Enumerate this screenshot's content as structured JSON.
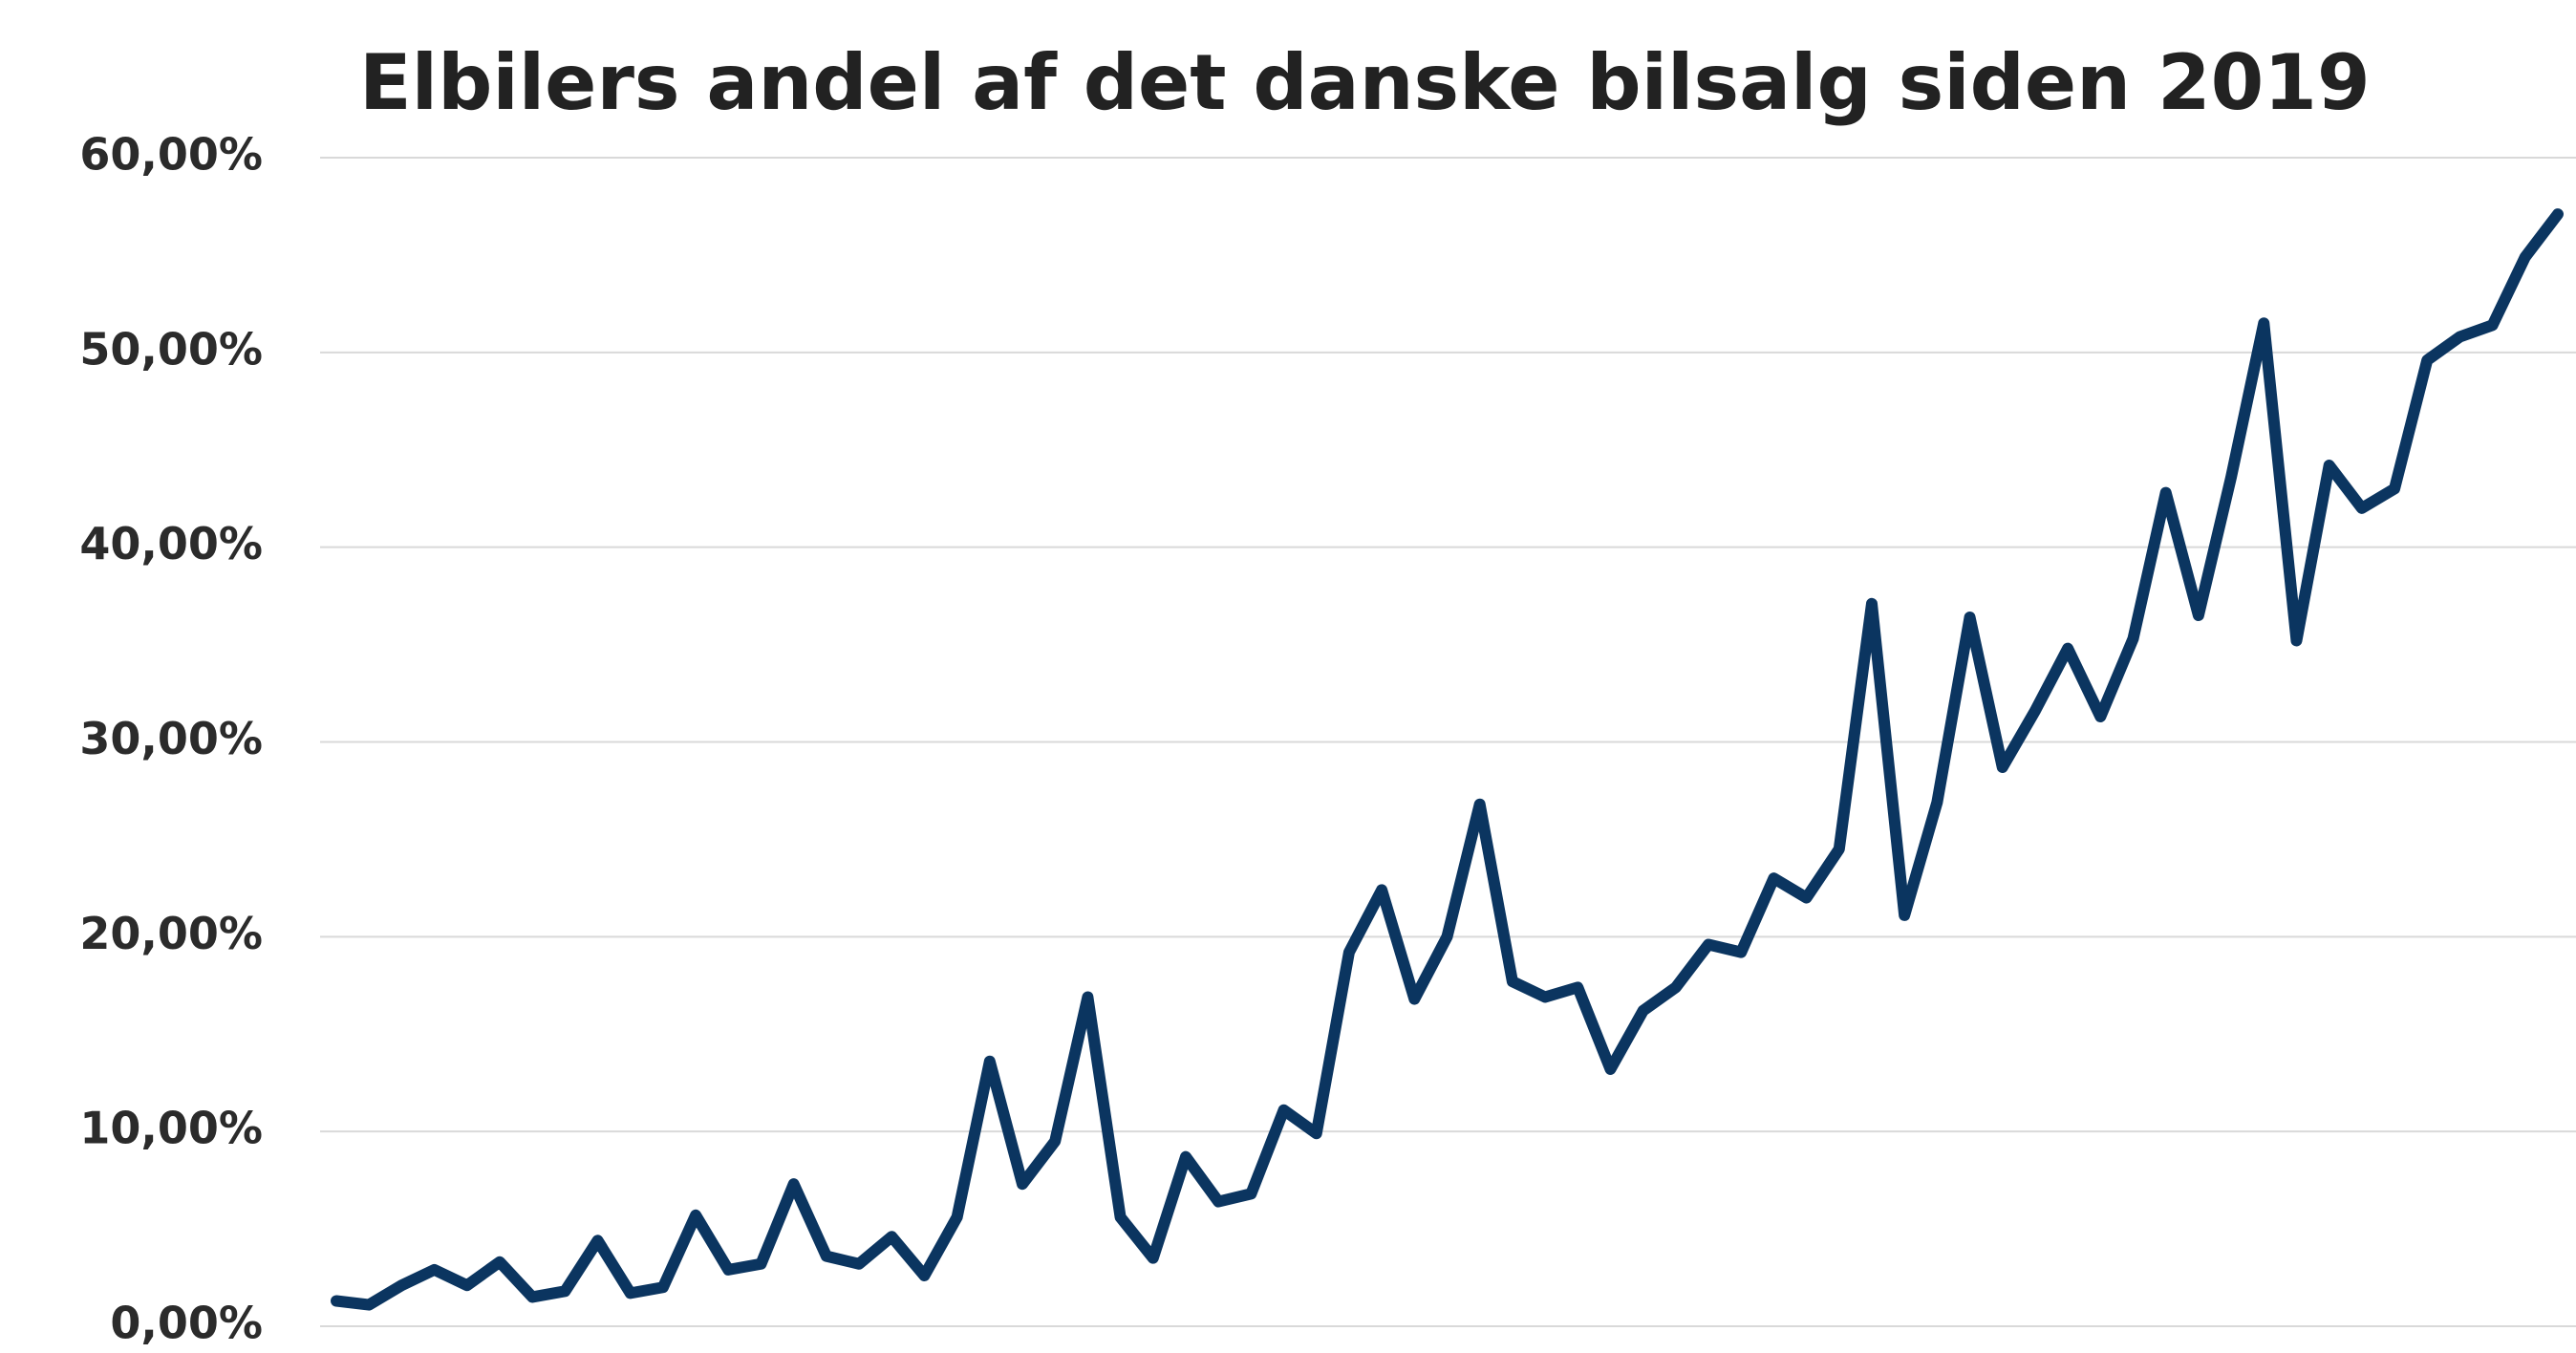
{
  "chart_data": {
    "type": "line",
    "title": "Elbilers andel af det danske bilsalg siden 2019",
    "series": [
      {
        "color": "#0b3560",
        "values": [
          1.3,
          1.1,
          2.1,
          2.9,
          2.1,
          3.3,
          1.5,
          1.8,
          4.4,
          1.7,
          2.0,
          5.7,
          2.9,
          3.2,
          7.3,
          3.6,
          3.2,
          4.6,
          2.6,
          5.6,
          13.6,
          7.3,
          9.5,
          16.9,
          5.6,
          3.5,
          8.7,
          6.4,
          6.8,
          11.1,
          9.9,
          19.2,
          22.4,
          16.8,
          20.0,
          26.8,
          17.7,
          16.9,
          17.4,
          13.2,
          16.2,
          17.4,
          19.6,
          19.2,
          23.0,
          22.0,
          24.5,
          37.1,
          21.1,
          26.9,
          36.4,
          28.7,
          31.6,
          34.8,
          31.3,
          35.3,
          42.8,
          36.5,
          43.6,
          51.5,
          35.2,
          44.2,
          42.0,
          43.0,
          49.6,
          50.8,
          51.4,
          54.9,
          57.1
        ]
      }
    ],
    "ylim": [
      0,
      60
    ],
    "yticks": [
      {
        "value": 0,
        "label": "0,00%"
      },
      {
        "value": 10,
        "label": "10,00%"
      },
      {
        "value": 20,
        "label": "20,00%"
      },
      {
        "value": 30,
        "label": "30,00%"
      },
      {
        "value": 40,
        "label": "40,00%"
      },
      {
        "value": 50,
        "label": "50,00%"
      },
      {
        "value": 60,
        "label": "60,00%"
      }
    ],
    "grid": true
  }
}
